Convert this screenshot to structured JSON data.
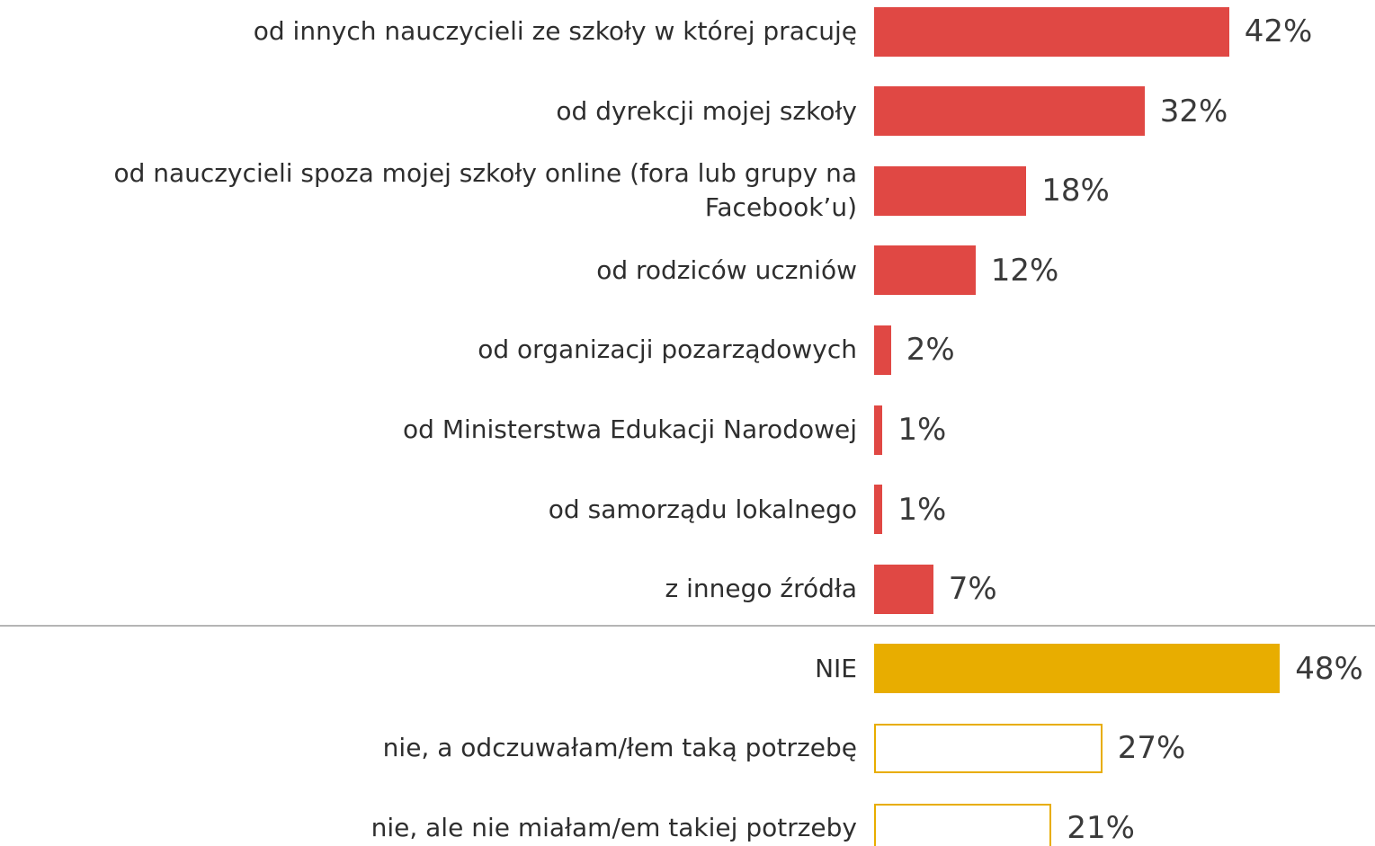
{
  "chart_data": {
    "type": "bar",
    "orientation": "horizontal",
    "categories": [
      "od innych nauczycieli ze szkoły w której pracuję",
      "od dyrekcji mojej szkoły",
      "od nauczycieli spoza mojej szkoły online (fora lub grupy na Facebook’u)",
      "od rodziców uczniów",
      "od organizacji pozarządowych",
      "od Ministerstwa Edukacji Narodowej",
      "od samorządu lokalnego",
      "z innego źródła",
      "NIE",
      "nie, a odczuwałam/łem taką potrzebę",
      "nie, ale nie miałam/em takiej potrzeby"
    ],
    "values": [
      42,
      32,
      18,
      12,
      2,
      1,
      1,
      7,
      48,
      27,
      21
    ],
    "value_labels": [
      "42%",
      "32%",
      "18%",
      "12%",
      "2%",
      "1%",
      "1%",
      "7%",
      "48%",
      "27%",
      "21%"
    ],
    "colors": [
      "#e04844",
      "#e04844",
      "#e04844",
      "#e04844",
      "#e04844",
      "#e04844",
      "#e04844",
      "#e04844",
      "#e8ad00",
      "#e8ad00",
      "#e8ad00"
    ],
    "fill_styles": [
      "solid",
      "solid",
      "solid",
      "solid",
      "solid",
      "solid",
      "solid",
      "solid",
      "solid",
      "outline",
      "outline"
    ]
  }
}
